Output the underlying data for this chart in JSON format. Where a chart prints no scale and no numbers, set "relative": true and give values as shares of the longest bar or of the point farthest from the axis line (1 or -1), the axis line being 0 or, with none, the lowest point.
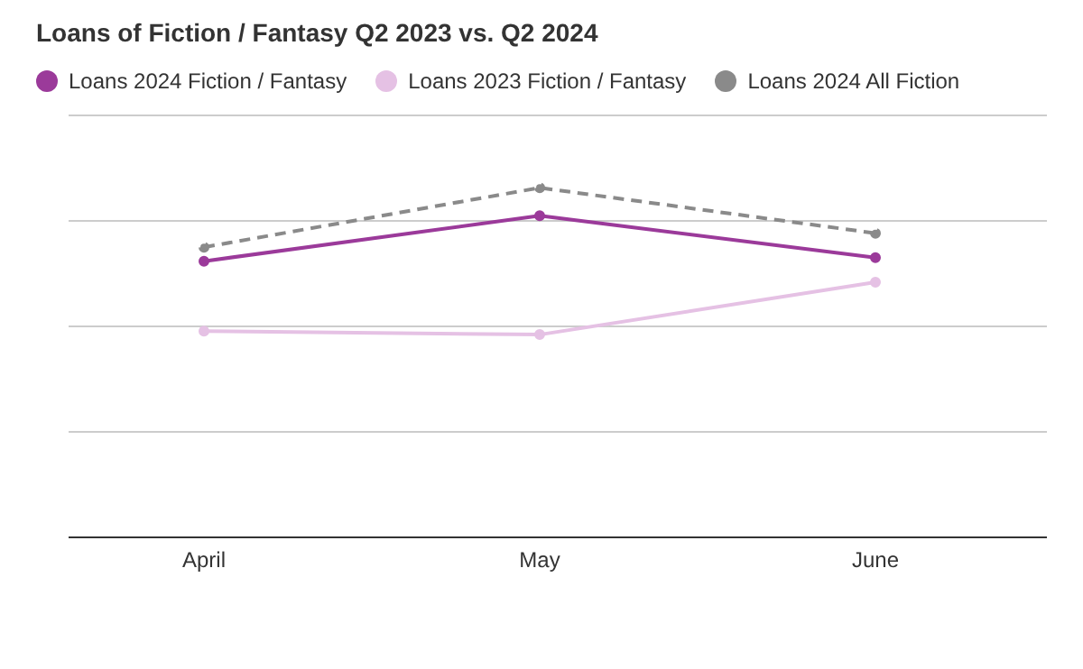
{
  "chart_data": {
    "type": "line",
    "title": "Loans of Fiction / Fantasy Q2 2023 vs. Q2 2024",
    "categories": [
      "April",
      "May",
      "June"
    ],
    "relative": true,
    "grid": "y",
    "legend": "top left",
    "marker": "circle",
    "series": [
      {
        "name": "Loans 2024 Fiction / Fantasy",
        "color": "#9b3a9a",
        "values": [
          0.79,
          0.92,
          0.8
        ]
      },
      {
        "name": "Loans 2023 Fiction / Fantasy",
        "color": "#e5c1e4",
        "values": [
          0.59,
          0.58,
          0.73
        ]
      },
      {
        "name": "Loans 2024 All Fiction",
        "color": "#8a8a8a",
        "line_style": "dashed",
        "values": [
          0.83,
          1,
          0.87
        ]
      }
    ]
  }
}
